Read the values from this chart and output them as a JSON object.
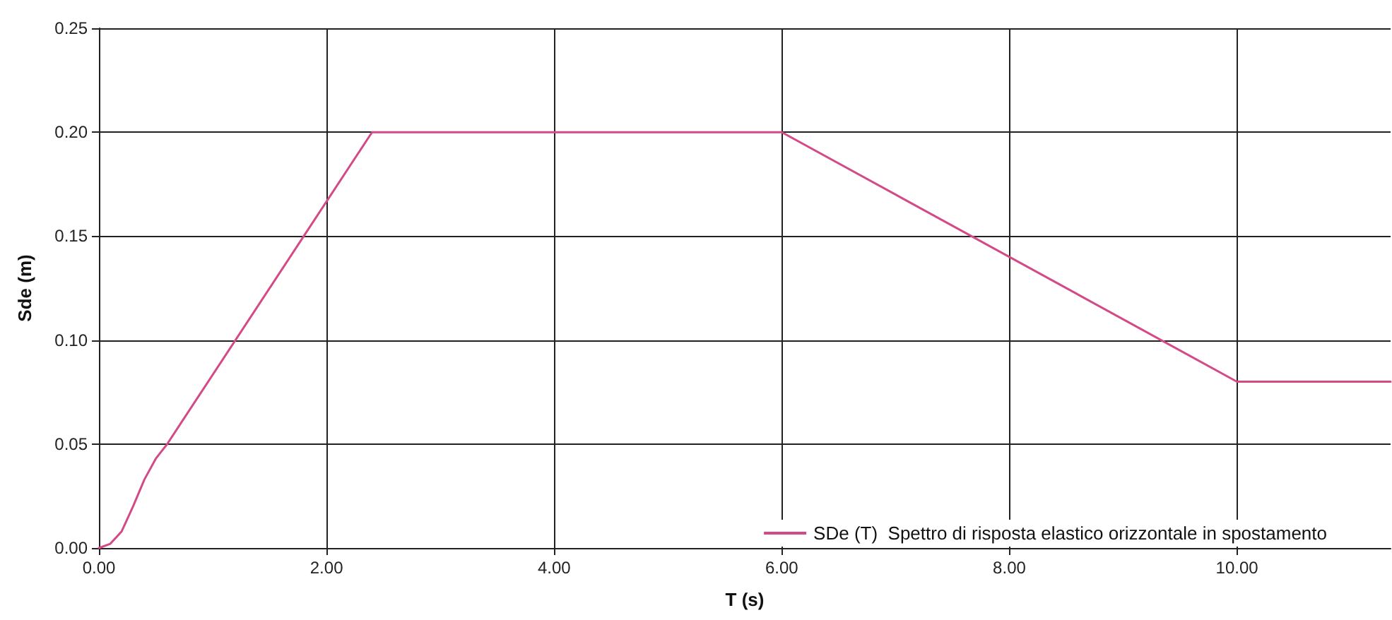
{
  "chart_data": {
    "type": "line",
    "xlabel": "T (s)",
    "ylabel": "Sde (m)",
    "xlim": [
      0,
      11.35
    ],
    "ylim": [
      0,
      0.25
    ],
    "xticks": [
      {
        "value": 0,
        "label": "0.00"
      },
      {
        "value": 2,
        "label": "2.00"
      },
      {
        "value": 4,
        "label": "4.00"
      },
      {
        "value": 6,
        "label": "6.00"
      },
      {
        "value": 8,
        "label": "8.00"
      },
      {
        "value": 10,
        "label": "10.00"
      }
    ],
    "yticks": [
      {
        "value": 0,
        "label": "0.00"
      },
      {
        "value": 0.05,
        "label": "0.05"
      },
      {
        "value": 0.1,
        "label": "0.10"
      },
      {
        "value": 0.15,
        "label": "0.15"
      },
      {
        "value": 0.2,
        "label": "0.20"
      },
      {
        "value": 0.25,
        "label": "0.25"
      }
    ],
    "grid": true,
    "legend": "bottom right",
    "marker": "none",
    "line_style": "solid",
    "series": [
      {
        "name": "SDe (T)  Spettro di risposta elastico orizzontale in spostamento",
        "color": "#d44a86",
        "x": [
          0,
          0.1,
          0.2,
          0.3,
          0.4,
          0.5,
          0.6,
          2.4,
          6,
          10,
          11.35
        ],
        "values": [
          0,
          0.002,
          0.008,
          0.02,
          0.033,
          0.043,
          0.05,
          0.2,
          0.2,
          0.08,
          0.08
        ]
      }
    ]
  }
}
